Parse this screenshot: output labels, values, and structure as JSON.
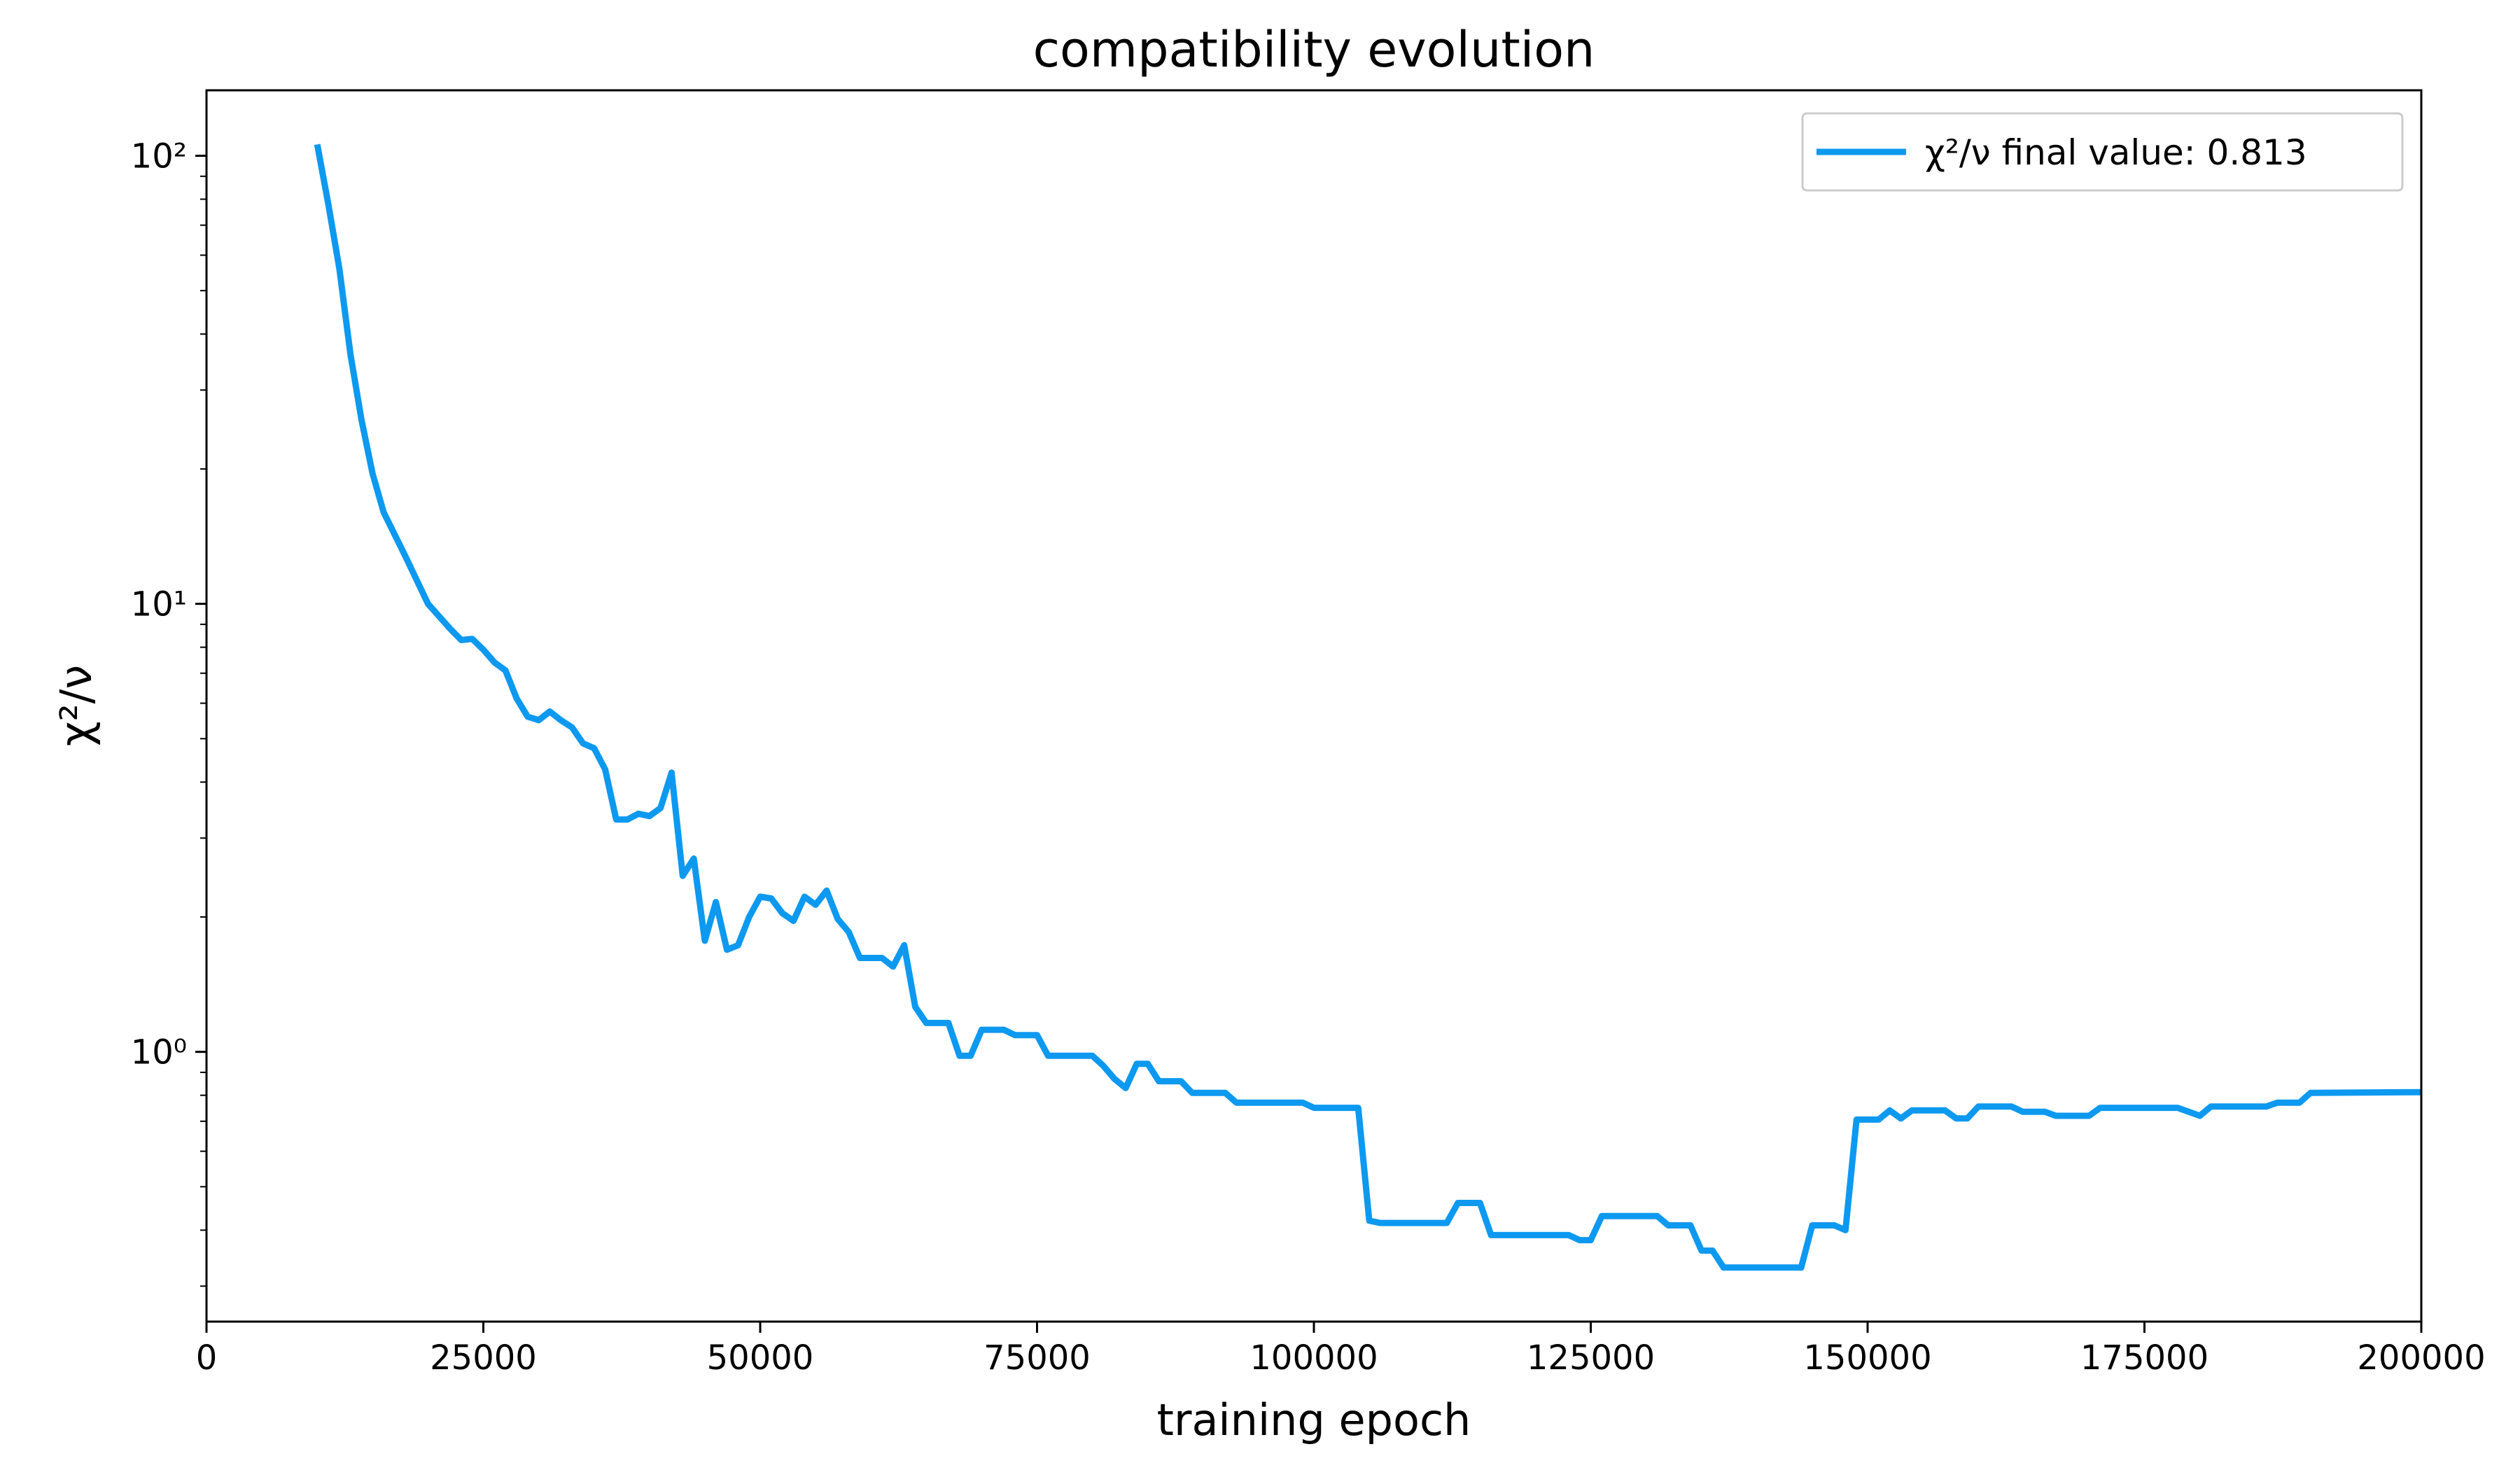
{
  "chart_data": {
    "type": "line",
    "title": "compatibility evolution",
    "xlabel": "training epoch",
    "ylabel": "χ²/ν",
    "log_y": true,
    "grid": false,
    "legend": "upper right",
    "xlim": [
      0,
      200000
    ],
    "xticks": [
      0,
      25000,
      50000,
      75000,
      100000,
      125000,
      150000,
      175000,
      200000
    ],
    "ylim": [
      0.25,
      140
    ],
    "yticks": [
      {
        "value": 1,
        "label": "10⁰"
      },
      {
        "value": 10,
        "label": "10¹"
      },
      {
        "value": 100,
        "label": "10²"
      }
    ],
    "yminorticks": [
      0.3,
      0.4,
      0.5,
      0.6,
      0.7,
      0.8,
      0.9,
      2,
      3,
      4,
      5,
      6,
      7,
      8,
      9,
      20,
      30,
      40,
      50,
      60,
      70,
      80,
      90
    ],
    "x": [
      10000,
      11000,
      12000,
      13000,
      14000,
      15000,
      16000,
      18000,
      20000,
      22000,
      23000,
      24000,
      25000,
      26000,
      27000,
      28000,
      29000,
      30000,
      31000,
      32000,
      33000,
      34000,
      35000,
      36000,
      37000,
      38000,
      39000,
      40000,
      41000,
      42000,
      43000,
      44000,
      45000,
      46000,
      47000,
      48000,
      49000,
      50000,
      51000,
      52000,
      53000,
      54000,
      55000,
      56000,
      57000,
      58000,
      59000,
      61000,
      62000,
      63000,
      64000,
      65000,
      67000,
      68000,
      69000,
      70000,
      72000,
      73000,
      75000,
      76000,
      80000,
      81000,
      82000,
      83000,
      84000,
      85000,
      86000,
      88000,
      89000,
      92000,
      93000,
      99000,
      100000,
      104000,
      105000,
      106000,
      112000,
      113000,
      115000,
      116000,
      123000,
      124000,
      125000,
      126000,
      131000,
      132000,
      134000,
      135000,
      136000,
      137000,
      144000,
      145000,
      147000,
      148000,
      149000,
      151000,
      152000,
      153000,
      154000,
      157000,
      158000,
      159000,
      160000,
      163000,
      164000,
      166000,
      167000,
      170000,
      171000,
      178000,
      179000,
      180000,
      181000,
      186000,
      187000,
      189000,
      190000,
      200000
    ],
    "series": [
      {
        "name": "χ²/ν final value: 0.813",
        "color": "#0d99f0",
        "values": [
          106,
          78,
          56,
          36,
          25.7,
          19.5,
          16,
          12.7,
          10,
          8.8,
          8.3,
          8.35,
          7.9,
          7.4,
          7.1,
          6.15,
          5.6,
          5.5,
          5.75,
          5.5,
          5.3,
          4.88,
          4.76,
          4.27,
          3.3,
          3.3,
          3.4,
          3.36,
          3.5,
          4.2,
          2.47,
          2.7,
          1.77,
          2.16,
          1.69,
          1.73,
          2.0,
          2.22,
          2.2,
          2.04,
          1.96,
          2.22,
          2.13,
          2.29,
          1.98,
          1.85,
          1.62,
          1.62,
          1.55,
          1.73,
          1.26,
          1.16,
          1.16,
          0.98,
          0.98,
          1.12,
          1.12,
          1.09,
          1.09,
          0.98,
          0.98,
          0.93,
          0.87,
          0.83,
          0.94,
          0.94,
          0.86,
          0.86,
          0.81,
          0.81,
          0.77,
          0.77,
          0.75,
          0.75,
          0.42,
          0.415,
          0.415,
          0.46,
          0.46,
          0.39,
          0.39,
          0.38,
          0.38,
          0.43,
          0.43,
          0.41,
          0.41,
          0.36,
          0.36,
          0.33,
          0.33,
          0.41,
          0.41,
          0.4,
          0.706,
          0.706,
          0.74,
          0.71,
          0.74,
          0.74,
          0.71,
          0.71,
          0.755,
          0.755,
          0.735,
          0.735,
          0.72,
          0.72,
          0.75,
          0.75,
          0.735,
          0.72,
          0.755,
          0.755,
          0.77,
          0.77,
          0.81,
          0.813
        ]
      }
    ]
  }
}
